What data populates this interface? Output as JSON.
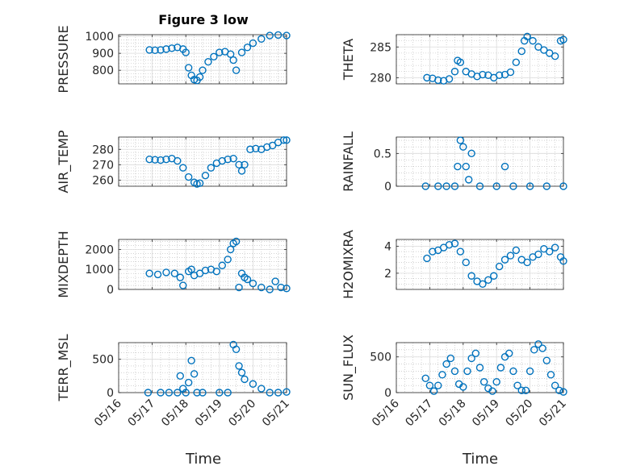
{
  "figure": {
    "title": "Figure 3 low",
    "xlabel": "Time"
  },
  "colors": {
    "marker": "#0072BD",
    "axis": "#262626",
    "grid": "#b8b8b8"
  },
  "x_ticks": [
    "05/16",
    "05/17",
    "05/18",
    "05/19",
    "05/20",
    "05/21"
  ],
  "chart_data": [
    {
      "type": "scatter",
      "ylabel": "PRESSURE",
      "ylim": [
        720,
        1010
      ],
      "yticks": [
        "800",
        "900",
        "1000"
      ],
      "title": "Figure 3 low",
      "x": [
        "05/16 22:00",
        "05/17 02:00",
        "05/17 06:00",
        "05/17 10:00",
        "05/17 14:00",
        "05/17 18:00",
        "05/17 22:00",
        "05/18 00:00",
        "05/18 02:00",
        "05/18 04:00",
        "05/18 06:00",
        "05/18 08:00",
        "05/18 10:00",
        "05/18 12:00",
        "05/18 16:00",
        "05/18 20:00",
        "05/19 00:00",
        "05/19 04:00",
        "05/19 08:00",
        "05/19 10:00",
        "05/19 12:00",
        "05/19 16:00",
        "05/19 20:00",
        "05/20 00:00",
        "05/20 06:00",
        "05/20 12:00",
        "05/20 18:00",
        "05/21 00:00"
      ],
      "y": [
        920,
        918,
        920,
        925,
        930,
        935,
        925,
        905,
        815,
        770,
        745,
        740,
        760,
        800,
        850,
        880,
        905,
        910,
        895,
        860,
        800,
        905,
        935,
        960,
        985,
        1005,
        1008,
        1005
      ]
    },
    {
      "type": "scatter",
      "ylabel": "THETA",
      "ylim": [
        279,
        287
      ],
      "yticks": [
        "280",
        "285"
      ],
      "x": [
        "05/16 22:00",
        "05/17 02:00",
        "05/17 06:00",
        "05/17 10:00",
        "05/17 14:00",
        "05/17 18:00",
        "05/17 20:00",
        "05/17 22:00",
        "05/18 02:00",
        "05/18 06:00",
        "05/18 10:00",
        "05/18 14:00",
        "05/18 18:00",
        "05/18 22:00",
        "05/19 02:00",
        "05/19 06:00",
        "05/19 10:00",
        "05/19 14:00",
        "05/19 18:00",
        "05/19 20:00",
        "05/19 22:00",
        "05/20 02:00",
        "05/20 06:00",
        "05/20 10:00",
        "05/20 14:00",
        "05/20 18:00",
        "05/20 22:00",
        "05/21 00:00"
      ],
      "y": [
        280.0,
        279.9,
        279.6,
        279.5,
        279.8,
        281.0,
        282.8,
        282.5,
        281.0,
        280.6,
        280.2,
        280.5,
        280.4,
        280.0,
        280.4,
        280.5,
        280.9,
        282.5,
        284.3,
        286.0,
        286.7,
        286.0,
        285.0,
        284.5,
        284.0,
        283.5,
        286.0,
        286.2
      ]
    },
    {
      "type": "scatter",
      "ylabel": "AIR_TEMP",
      "ylim": [
        256,
        288
      ],
      "yticks": [
        "260",
        "270",
        "280"
      ],
      "x": [
        "05/16 22:00",
        "05/17 02:00",
        "05/17 06:00",
        "05/17 10:00",
        "05/17 14:00",
        "05/17 18:00",
        "05/17 22:00",
        "05/18 02:00",
        "05/18 06:00",
        "05/18 08:00",
        "05/18 10:00",
        "05/18 14:00",
        "05/18 18:00",
        "05/18 22:00",
        "05/19 02:00",
        "05/19 06:00",
        "05/19 10:00",
        "05/19 14:00",
        "05/19 16:00",
        "05/19 18:00",
        "05/19 22:00",
        "05/20 02:00",
        "05/20 06:00",
        "05/20 10:00",
        "05/20 14:00",
        "05/20 18:00",
        "05/20 22:00",
        "05/21 00:00"
      ],
      "y": [
        273.5,
        273.2,
        273.0,
        273.5,
        274.0,
        272.5,
        268.0,
        262.0,
        258.5,
        257.5,
        258.0,
        263.0,
        268.0,
        271.0,
        272.5,
        273.5,
        274.0,
        270.0,
        266.0,
        270.0,
        280.0,
        280.5,
        280.0,
        281.5,
        282.5,
        284.5,
        286.0,
        286.0
      ]
    },
    {
      "type": "scatter",
      "ylabel": "RAINFALL",
      "ylim": [
        0,
        0.75
      ],
      "yticks": [
        "0",
        "0.5"
      ],
      "x": [
        "05/16 21:00",
        "05/17 06:00",
        "05/17 12:00",
        "05/17 18:00",
        "05/17 20:00",
        "05/17 22:00",
        "05/18 00:00",
        "05/18 02:00",
        "05/18 04:00",
        "05/18 06:00",
        "05/18 12:00",
        "05/19 00:00",
        "05/19 06:00",
        "05/19 12:00",
        "05/20 00:00",
        "05/20 12:00",
        "05/21 00:00"
      ],
      "y": [
        0,
        0,
        0,
        0,
        0.3,
        0.7,
        0.6,
        0.3,
        0.1,
        0.5,
        0,
        0,
        0.3,
        0,
        0,
        0,
        0
      ]
    },
    {
      "type": "scatter",
      "ylabel": "MIXDEPTH",
      "ylim": [
        0,
        2500
      ],
      "yticks": [
        "0",
        "1000",
        "2000"
      ],
      "x": [
        "05/16 22:00",
        "05/17 04:00",
        "05/17 10:00",
        "05/17 16:00",
        "05/17 20:00",
        "05/17 22:00",
        "05/18 02:00",
        "05/18 04:00",
        "05/18 06:00",
        "05/18 10:00",
        "05/18 14:00",
        "05/18 18:00",
        "05/18 22:00",
        "05/19 02:00",
        "05/19 06:00",
        "05/19 08:00",
        "05/19 10:00",
        "05/19 12:00",
        "05/19 14:00",
        "05/19 16:00",
        "05/19 18:00",
        "05/19 20:00",
        "05/20 00:00",
        "05/20 06:00",
        "05/20 12:00",
        "05/20 16:00",
        "05/20 20:00",
        "05/21 00:00"
      ],
      "y": [
        800,
        750,
        850,
        800,
        600,
        200,
        900,
        1000,
        700,
        800,
        950,
        1000,
        900,
        1200,
        1500,
        2000,
        2300,
        2400,
        100,
        800,
        600,
        500,
        300,
        100,
        0,
        400,
        100,
        50
      ]
    },
    {
      "type": "scatter",
      "ylabel": "H2OMIXRA",
      "ylim": [
        0.8,
        4.5
      ],
      "yticks": [
        "2",
        "4"
      ],
      "x": [
        "05/16 22:00",
        "05/17 02:00",
        "05/17 06:00",
        "05/17 10:00",
        "05/17 14:00",
        "05/17 18:00",
        "05/17 22:00",
        "05/18 02:00",
        "05/18 06:00",
        "05/18 10:00",
        "05/18 14:00",
        "05/18 18:00",
        "05/18 22:00",
        "05/19 02:00",
        "05/19 06:00",
        "05/19 10:00",
        "05/19 14:00",
        "05/19 18:00",
        "05/19 22:00",
        "05/20 02:00",
        "05/20 06:00",
        "05/20 10:00",
        "05/20 14:00",
        "05/20 18:00",
        "05/20 22:00",
        "05/21 00:00"
      ],
      "y": [
        3.1,
        3.6,
        3.7,
        3.9,
        4.1,
        4.2,
        3.6,
        2.8,
        1.8,
        1.4,
        1.2,
        1.5,
        1.8,
        2.5,
        3.0,
        3.3,
        3.7,
        3.0,
        2.8,
        3.2,
        3.4,
        3.8,
        3.6,
        3.9,
        3.2,
        2.9
      ]
    },
    {
      "type": "scatter",
      "ylabel": "TERR_MSL",
      "ylim": [
        0,
        750
      ],
      "yticks": [
        "0",
        "500"
      ],
      "x": [
        "05/16 21:00",
        "05/17 06:00",
        "05/17 12:00",
        "05/17 18:00",
        "05/17 20:00",
        "05/17 22:00",
        "05/18 00:00",
        "05/18 02:00",
        "05/18 04:00",
        "05/18 06:00",
        "05/18 08:00",
        "05/18 12:00",
        "05/19 00:00",
        "05/19 06:00",
        "05/19 10:00",
        "05/19 12:00",
        "05/19 14:00",
        "05/19 16:00",
        "05/19 18:00",
        "05/20 00:00",
        "05/20 06:00",
        "05/20 12:00",
        "05/20 18:00",
        "05/21 00:00"
      ],
      "y": [
        0,
        0,
        0,
        0,
        250,
        60,
        0,
        150,
        480,
        280,
        0,
        0,
        0,
        0,
        720,
        650,
        400,
        300,
        200,
        130,
        60,
        0,
        0,
        10
      ]
    },
    {
      "type": "scatter",
      "ylabel": "SUN_FLUX",
      "ylim": [
        0,
        700
      ],
      "yticks": [
        "0",
        "500"
      ],
      "x": [
        "05/16 21:00",
        "05/17 00:00",
        "05/17 03:00",
        "05/17 06:00",
        "05/17 09:00",
        "05/17 12:00",
        "05/17 15:00",
        "05/17 18:00",
        "05/17 21:00",
        "05/18 00:00",
        "05/18 03:00",
        "05/18 06:00",
        "05/18 09:00",
        "05/18 12:00",
        "05/18 15:00",
        "05/18 18:00",
        "05/18 21:00",
        "05/19 00:00",
        "05/19 03:00",
        "05/19 06:00",
        "05/19 09:00",
        "05/19 12:00",
        "05/19 15:00",
        "05/19 18:00",
        "05/19 21:00",
        "05/20 00:00",
        "05/20 03:00",
        "05/20 06:00",
        "05/20 09:00",
        "05/20 12:00",
        "05/20 15:00",
        "05/20 18:00",
        "05/20 21:00",
        "05/21 00:00"
      ],
      "y": [
        200,
        100,
        20,
        100,
        250,
        400,
        480,
        300,
        120,
        80,
        300,
        480,
        550,
        350,
        150,
        60,
        20,
        150,
        350,
        500,
        550,
        300,
        100,
        30,
        30,
        300,
        600,
        680,
        620,
        450,
        250,
        100,
        30,
        10
      ]
    }
  ]
}
